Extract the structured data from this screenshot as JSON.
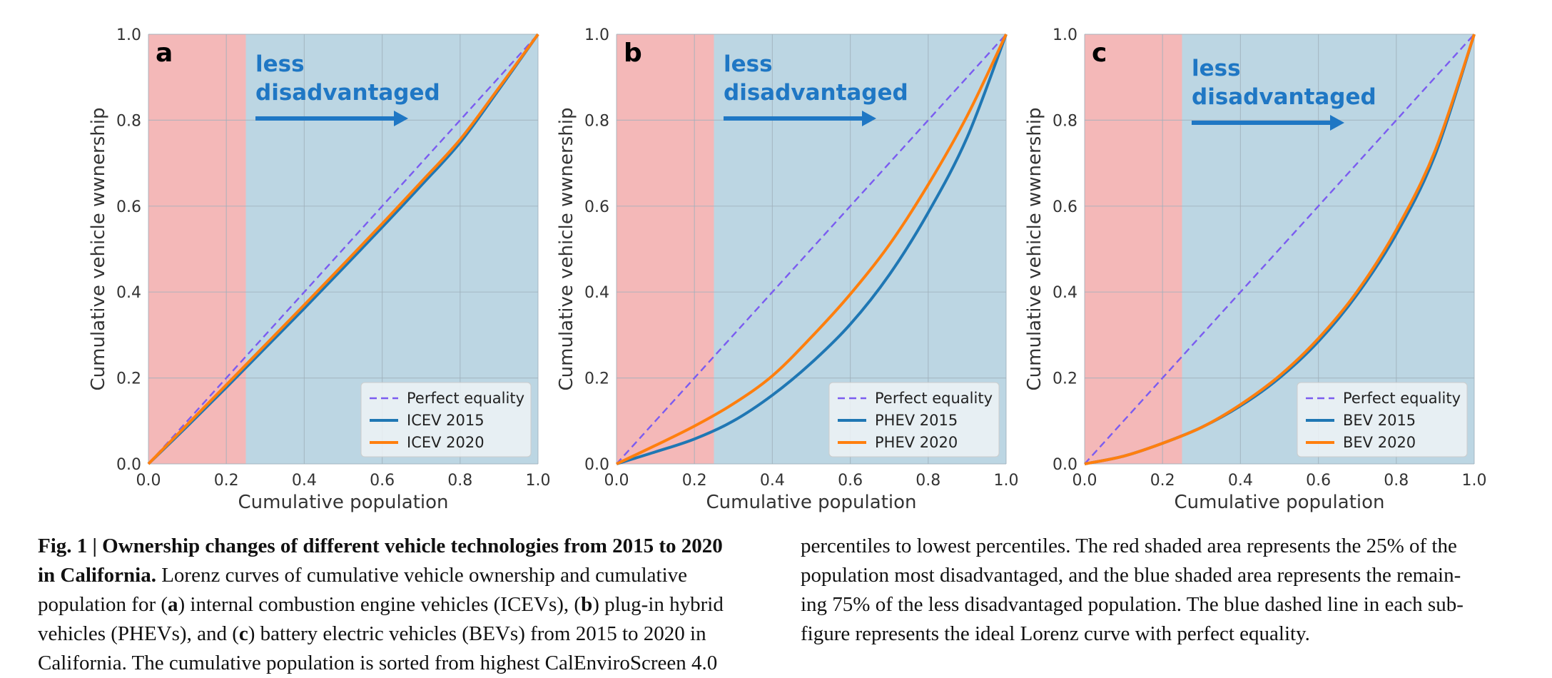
{
  "chart_data": [
    {
      "type": "line",
      "panel_label": "a",
      "xlabel": "Cumulative population",
      "ylabel": "Cumulative vehicle wwnership",
      "xlim": [
        0,
        1
      ],
      "ylim": [
        0,
        1
      ],
      "xticks": [
        "0.0",
        "0.2",
        "0.4",
        "0.6",
        "0.8",
        "1.0"
      ],
      "yticks": [
        "0.0",
        "0.2",
        "0.4",
        "0.6",
        "0.8",
        "1.0"
      ],
      "grid": true,
      "annotation": [
        "less",
        "disadvantaged"
      ],
      "shaded_regions": [
        {
          "x": [
            0,
            0.25
          ],
          "color": "#f4b8b8"
        },
        {
          "x": [
            0.25,
            1.0
          ],
          "color": "#bcd6e3"
        }
      ],
      "legend_position": "lower-right",
      "series": [
        {
          "name": "Perfect equality",
          "color": "#7b5cf0",
          "style": "dashed",
          "x": [
            0,
            0.2,
            0.4,
            0.6,
            0.8,
            1.0
          ],
          "y": [
            0,
            0.2,
            0.4,
            0.6,
            0.8,
            1.0
          ]
        },
        {
          "name": "ICEV 2015",
          "color": "#1f77b4",
          "style": "solid",
          "x": [
            0,
            0.1,
            0.2,
            0.3,
            0.4,
            0.5,
            0.6,
            0.7,
            0.8,
            0.9,
            1.0
          ],
          "y": [
            0,
            0.088,
            0.178,
            0.27,
            0.362,
            0.456,
            0.551,
            0.648,
            0.748,
            0.872,
            1.0
          ]
        },
        {
          "name": "ICEV 2020",
          "color": "#ff7f0e",
          "style": "solid",
          "x": [
            0,
            0.1,
            0.2,
            0.3,
            0.4,
            0.5,
            0.6,
            0.7,
            0.8,
            0.9,
            1.0
          ],
          "y": [
            0,
            0.092,
            0.184,
            0.277,
            0.37,
            0.464,
            0.559,
            0.656,
            0.755,
            0.876,
            1.0
          ]
        }
      ]
    },
    {
      "type": "line",
      "panel_label": "b",
      "xlabel": "Cumulative population",
      "ylabel": "Cumulative vehicle wwnership",
      "xlim": [
        0,
        1
      ],
      "ylim": [
        0,
        1
      ],
      "xticks": [
        "0.0",
        "0.2",
        "0.4",
        "0.6",
        "0.8",
        "1.0"
      ],
      "yticks": [
        "0.0",
        "0.2",
        "0.4",
        "0.6",
        "0.8",
        "1.0"
      ],
      "grid": true,
      "annotation": [
        "less",
        "disadvantaged"
      ],
      "shaded_regions": [
        {
          "x": [
            0,
            0.25
          ],
          "color": "#f4b8b8"
        },
        {
          "x": [
            0.25,
            1.0
          ],
          "color": "#bcd6e3"
        }
      ],
      "legend_position": "lower-right",
      "series": [
        {
          "name": "Perfect equality",
          "color": "#7b5cf0",
          "style": "dashed",
          "x": [
            0,
            0.2,
            0.4,
            0.6,
            0.8,
            1.0
          ],
          "y": [
            0,
            0.2,
            0.4,
            0.6,
            0.8,
            1.0
          ]
        },
        {
          "name": "PHEV 2015",
          "color": "#1f77b4",
          "style": "solid",
          "x": [
            0,
            0.1,
            0.2,
            0.3,
            0.4,
            0.5,
            0.6,
            0.7,
            0.8,
            0.9,
            1.0
          ],
          "y": [
            0,
            0.028,
            0.058,
            0.1,
            0.16,
            0.235,
            0.325,
            0.44,
            0.585,
            0.76,
            1.0
          ]
        },
        {
          "name": "PHEV 2020",
          "color": "#ff7f0e",
          "style": "solid",
          "x": [
            0,
            0.1,
            0.2,
            0.3,
            0.4,
            0.5,
            0.6,
            0.7,
            0.8,
            0.9,
            1.0
          ],
          "y": [
            0,
            0.043,
            0.088,
            0.14,
            0.205,
            0.295,
            0.395,
            0.51,
            0.65,
            0.81,
            1.0
          ]
        }
      ]
    },
    {
      "type": "line",
      "panel_label": "c",
      "xlabel": "Cumulative population",
      "ylabel": "Cumulative vehicle wwnership",
      "xlim": [
        0,
        1
      ],
      "ylim": [
        0,
        1
      ],
      "xticks": [
        "0.0",
        "0.2",
        "0.4",
        "0.6",
        "0.8",
        "1.0"
      ],
      "yticks": [
        "0.0",
        "0.2",
        "0.4",
        "0.6",
        "0.8",
        "1.0"
      ],
      "grid": true,
      "annotation": [
        "less",
        "disadvantaged"
      ],
      "shaded_regions": [
        {
          "x": [
            0,
            0.25
          ],
          "color": "#f4b8b8"
        },
        {
          "x": [
            0.25,
            1.0
          ],
          "color": "#bcd6e3"
        }
      ],
      "legend_position": "lower-right",
      "series": [
        {
          "name": "Perfect equality",
          "color": "#7b5cf0",
          "style": "dashed",
          "x": [
            0,
            0.2,
            0.4,
            0.6,
            0.8,
            1.0
          ],
          "y": [
            0,
            0.2,
            0.4,
            0.6,
            0.8,
            1.0
          ]
        },
        {
          "name": "BEV 2015",
          "color": "#1f77b4",
          "style": "solid",
          "x": [
            0,
            0.1,
            0.2,
            0.3,
            0.4,
            0.5,
            0.6,
            0.7,
            0.8,
            0.9,
            1.0
          ],
          "y": [
            0,
            0.018,
            0.048,
            0.085,
            0.135,
            0.2,
            0.285,
            0.395,
            0.535,
            0.72,
            1.0
          ]
        },
        {
          "name": "BEV 2020",
          "color": "#ff7f0e",
          "style": "solid",
          "x": [
            0,
            0.1,
            0.2,
            0.3,
            0.4,
            0.5,
            0.6,
            0.7,
            0.8,
            0.9,
            1.0
          ],
          "y": [
            0,
            0.018,
            0.048,
            0.085,
            0.138,
            0.205,
            0.292,
            0.402,
            0.545,
            0.73,
            1.0
          ]
        }
      ]
    }
  ],
  "caption": {
    "left_lines": [
      [
        {
          "text": "Fig. 1 | Ownership changes of different vehicle technologies from 2015 to 2020",
          "bold": true
        }
      ],
      [
        {
          "text": "in California.",
          "bold": true
        },
        {
          "text": " Lorenz curves of cumulative vehicle ownership and cumulative",
          "bold": false
        }
      ],
      [
        {
          "text": "population for (",
          "bold": false
        },
        {
          "text": "a",
          "bold": true
        },
        {
          "text": ") internal combustion engine vehicles (ICEVs), (",
          "bold": false
        },
        {
          "text": "b",
          "bold": true
        },
        {
          "text": ") plug-in hybrid",
          "bold": false
        }
      ],
      [
        {
          "text": "vehicles (PHEVs), and (",
          "bold": false
        },
        {
          "text": "c",
          "bold": true
        },
        {
          "text": ") battery electric vehicles (BEVs) from 2015 to 2020 in",
          "bold": false
        }
      ],
      [
        {
          "text": "California. The cumulative population is sorted from highest CalEnviroScreen 4.0",
          "bold": false
        }
      ]
    ],
    "right_lines": [
      "percentiles to lowest percentiles. The red shaded area represents the 25% of the",
      "population most disadvantaged, and the blue shaded area represents the remain-",
      "ing 75% of the less disadvantaged population. The blue dashed line in each sub-",
      "figure represents the ideal Lorenz curve with perfect equality."
    ]
  }
}
